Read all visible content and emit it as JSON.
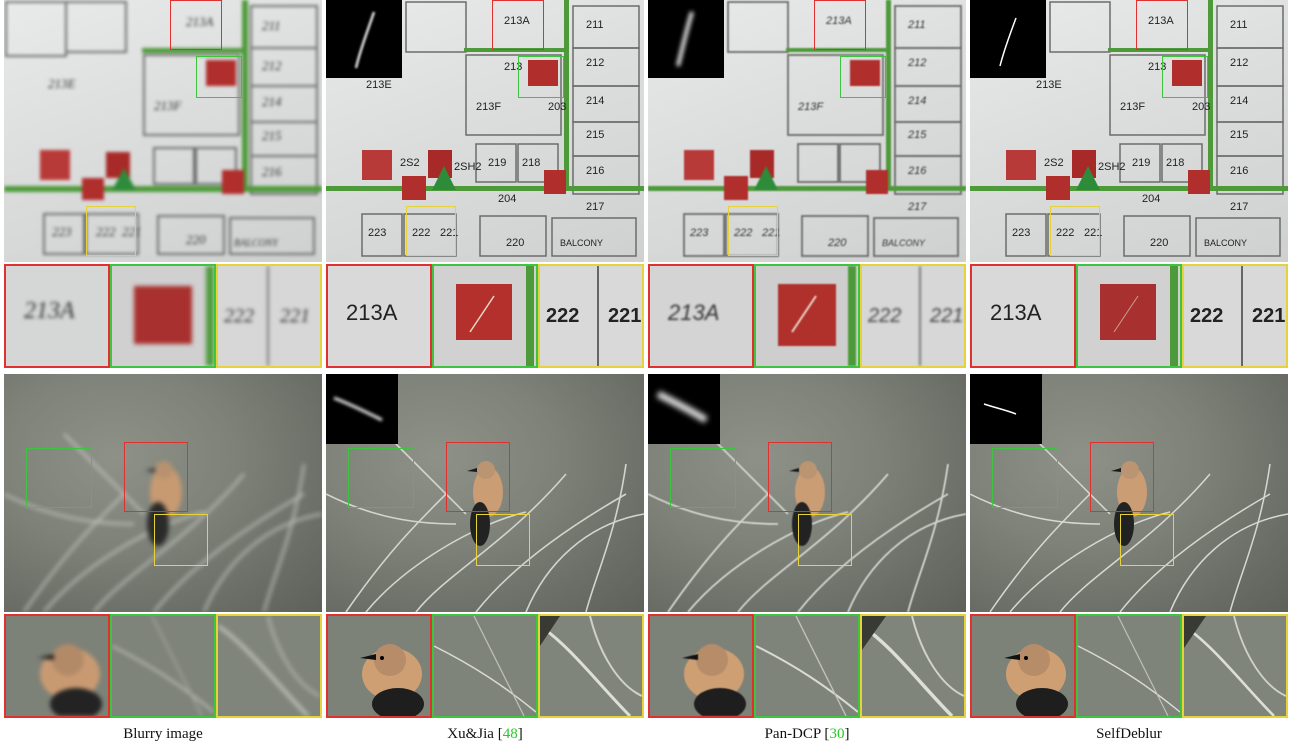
{
  "figure": {
    "columns": [
      {
        "caption": "Blurry image",
        "ref": "",
        "has_kernel": false,
        "fp_labels": {
          "room_a": "213A",
          "room_b": "222",
          "room_c": "221"
        }
      },
      {
        "caption": "Xu&Jia [",
        "ref": "48",
        "has_kernel": true,
        "fp_labels": {
          "room_a": "213A",
          "room_b": "222",
          "room_c": "221"
        }
      },
      {
        "caption": "Pan-DCP [",
        "ref": "30",
        "has_kernel": true,
        "fp_labels": {
          "room_a": "213A",
          "room_b": "222",
          "room_c": "221"
        }
      },
      {
        "caption": "SelfDeblur",
        "ref": "",
        "has_kernel": true,
        "fp_labels": {
          "room_a": "213A",
          "room_b": "222",
          "room_c": "221"
        }
      }
    ],
    "floorplan_labels": [
      "211",
      "212",
      "213",
      "213A",
      "213E",
      "213F",
      "214",
      "215",
      "216",
      "217",
      "218",
      "219",
      "220",
      "221",
      "222",
      "223",
      "2SH2",
      "2S2",
      "204",
      "203",
      "BALCONY"
    ],
    "colors": {
      "red_box": "#e03030",
      "green_box": "#3ec43e",
      "yellow_box": "#e6d23a",
      "ref_link": "#22cc22"
    }
  }
}
